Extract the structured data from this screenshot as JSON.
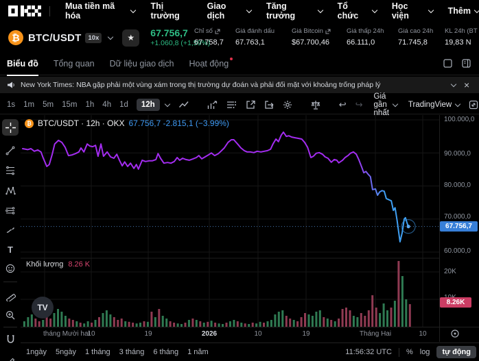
{
  "nav": {
    "items": [
      {
        "label": "Mua tiền mã hóa",
        "caret": true
      },
      {
        "label": "Thị trường",
        "caret": false
      },
      {
        "label": "Giao dịch",
        "caret": true
      },
      {
        "label": "Tăng trưởng",
        "caret": true
      },
      {
        "label": "Tổ chức",
        "caret": true
      },
      {
        "label": "Học viện",
        "caret": true
      },
      {
        "label": "Thêm",
        "caret": true
      }
    ]
  },
  "ticker": {
    "pair": "BTC/USDT",
    "leverage": "10x",
    "coin_symbol": "₿",
    "price": "67.756,7",
    "change": "+1.060,8 (+1,59%)",
    "stats": [
      {
        "label": "Chỉ số",
        "value": "67.758,7"
      },
      {
        "label": "Giá đánh dấu",
        "value": "67.763,1"
      },
      {
        "label": "Giá Bitcoin",
        "value": "$67.700,46"
      },
      {
        "label": "Giá thấp 24h",
        "value": "66.111,0"
      },
      {
        "label": "Giá cao 24h",
        "value": "71.745,8"
      },
      {
        "label": "KL 24h (BT",
        "value": "19,83 N"
      }
    ]
  },
  "tabs": {
    "chart": "Biểu đồ",
    "overview": "Tổng quan",
    "trading_data": "Dữ liệu giao dịch",
    "activity": "Hoạt động"
  },
  "news": {
    "text": "New York Times: NBA gặp phải một vùng xám trong thị trường dự đoán và phải đối mặt với khoảng trống pháp lý"
  },
  "toolbar": {
    "timeframes": [
      "1s",
      "1m",
      "5m",
      "15m",
      "1h",
      "4h",
      "1d"
    ],
    "active_timeframe": "12h",
    "price_mode": "Giá gần nhất",
    "provider": "TradingView"
  },
  "legend": {
    "title": "BTC/USDT · 12h · OKX",
    "price_change": "67.756,7 -2.815,1 (−3.99%)"
  },
  "volume_legend": {
    "label": "Khối lượng",
    "value": "8.26 K"
  },
  "price_axis": {
    "labels": [
      "100.000,0",
      "90.000,0",
      "80.000,0",
      "70.000,0",
      "60.000,0"
    ],
    "current_badge": "67.756,7"
  },
  "volume_axis": {
    "labels": [
      "20K",
      "10K"
    ],
    "current_badge": "8.26K"
  },
  "time_axis": {
    "labels": [
      "tháng Mười hai",
      "10",
      "19",
      "2026",
      "10",
      "19",
      "Tháng Hai",
      "10"
    ]
  },
  "bottom": {
    "ranges": [
      "1ngày",
      "5ngày",
      "1 tháng",
      "3 tháng",
      "6 tháng",
      "1 năm"
    ],
    "clock": "11:56:32 UTC",
    "percent": "%",
    "log": "log",
    "auto": "tự động"
  },
  "icons": {
    "star": "★",
    "close": "×",
    "undo": "↩",
    "redo": "↪",
    "text_tool": "T",
    "tv": "TV"
  },
  "colors": {
    "green": "#2ebd85",
    "line_purple": "#a32cf0",
    "line_blue": "#3f9ff2",
    "legend_blue": "#3f9bf5",
    "badge_blue": "#377fd8",
    "badge_pink": "#cc3d64",
    "vol_green": "#2f7a52",
    "vol_red": "#8f3a52",
    "bitcoin_orange": "#f7931a",
    "alert_red": "#e0314b"
  },
  "chart_data": {
    "type": "line",
    "symbol": "BTC/USDT",
    "interval": "12h",
    "exchange": "OKX",
    "current_price": 67756.7,
    "price_pane_range": [
      58500,
      101500
    ],
    "grid_prices": [
      100000,
      90000,
      80000,
      70000,
      60000
    ],
    "volume_grid": [
      20000,
      10000
    ],
    "volume_pane_max": 25000,
    "current_volume": 8260,
    "points": [
      [
        0.0,
        91300
      ],
      [
        0.012,
        91000
      ],
      [
        0.02,
        91300
      ],
      [
        0.028,
        90500
      ],
      [
        0.036,
        90900
      ],
      [
        0.044,
        90300
      ],
      [
        0.049,
        88600
      ],
      [
        0.058,
        85900
      ],
      [
        0.064,
        86500
      ],
      [
        0.071,
        89600
      ],
      [
        0.077,
        92700
      ],
      [
        0.086,
        93800
      ],
      [
        0.094,
        93200
      ],
      [
        0.102,
        91700
      ],
      [
        0.11,
        89200
      ],
      [
        0.119,
        89400
      ],
      [
        0.127,
        89800
      ],
      [
        0.135,
        90300
      ],
      [
        0.14,
        91500
      ],
      [
        0.147,
        90300
      ],
      [
        0.155,
        92700
      ],
      [
        0.161,
        92100
      ],
      [
        0.168,
        91900
      ],
      [
        0.175,
        92300
      ],
      [
        0.181,
        89000
      ],
      [
        0.188,
        92700
      ],
      [
        0.194,
        89000
      ],
      [
        0.203,
        90300
      ],
      [
        0.211,
        88800
      ],
      [
        0.219,
        88400
      ],
      [
        0.226,
        89600
      ],
      [
        0.232,
        87900
      ],
      [
        0.239,
        86100
      ],
      [
        0.245,
        87300
      ],
      [
        0.252,
        85900
      ],
      [
        0.259,
        86900
      ],
      [
        0.267,
        85300
      ],
      [
        0.273,
        86500
      ],
      [
        0.278,
        85100
      ],
      [
        0.287,
        87800
      ],
      [
        0.295,
        87400
      ],
      [
        0.303,
        87600
      ],
      [
        0.311,
        87600
      ],
      [
        0.32,
        88000
      ],
      [
        0.325,
        89800
      ],
      [
        0.331,
        88400
      ],
      [
        0.339,
        86900
      ],
      [
        0.348,
        87100
      ],
      [
        0.356,
        86900
      ],
      [
        0.364,
        87400
      ],
      [
        0.371,
        88600
      ],
      [
        0.377,
        87800
      ],
      [
        0.384,
        88400
      ],
      [
        0.392,
        88000
      ],
      [
        0.4,
        87800
      ],
      [
        0.409,
        88200
      ],
      [
        0.417,
        88600
      ],
      [
        0.423,
        89200
      ],
      [
        0.43,
        88200
      ],
      [
        0.438,
        88800
      ],
      [
        0.446,
        89400
      ],
      [
        0.453,
        90000
      ],
      [
        0.461,
        89200
      ],
      [
        0.47,
        89800
      ],
      [
        0.476,
        90500
      ],
      [
        0.484,
        91500
      ],
      [
        0.493,
        93200
      ],
      [
        0.501,
        94000
      ],
      [
        0.507,
        94000
      ],
      [
        0.516,
        92700
      ],
      [
        0.524,
        91500
      ],
      [
        0.532,
        90700
      ],
      [
        0.539,
        90300
      ],
      [
        0.547,
        90300
      ],
      [
        0.555,
        90100
      ],
      [
        0.563,
        90500
      ],
      [
        0.572,
        90300
      ],
      [
        0.58,
        90500
      ],
      [
        0.588,
        90700
      ],
      [
        0.595,
        91100
      ],
      [
        0.601,
        92700
      ],
      [
        0.608,
        94200
      ],
      [
        0.614,
        93400
      ],
      [
        0.621,
        95400
      ],
      [
        0.626,
        96300
      ],
      [
        0.633,
        95000
      ],
      [
        0.639,
        95200
      ],
      [
        0.646,
        94800
      ],
      [
        0.654,
        94600
      ],
      [
        0.662,
        94400
      ],
      [
        0.67,
        94200
      ],
      [
        0.677,
        93200
      ],
      [
        0.684,
        91700
      ],
      [
        0.692,
        88600
      ],
      [
        0.698,
        89000
      ],
      [
        0.705,
        89900
      ],
      [
        0.712,
        90100
      ],
      [
        0.72,
        89600
      ],
      [
        0.726,
        88800
      ],
      [
        0.733,
        88400
      ],
      [
        0.741,
        87200
      ],
      [
        0.748,
        88000
      ],
      [
        0.754,
        87800
      ],
      [
        0.759,
        87000
      ],
      [
        0.768,
        87800
      ],
      [
        0.774,
        88600
      ],
      [
        0.781,
        89200
      ],
      [
        0.787,
        89900
      ],
      [
        0.794,
        90300
      ],
      [
        0.801,
        89600
      ],
      [
        0.807,
        88000
      ],
      [
        0.814,
        85700
      ],
      [
        0.819,
        84000
      ],
      [
        0.824,
        84400
      ],
      [
        0.829,
        83600
      ],
      [
        0.835,
        82800
      ],
      [
        0.84,
        78900
      ],
      [
        0.847,
        79100
      ],
      [
        0.852,
        77200
      ],
      [
        0.857,
        78200
      ],
      [
        0.863,
        78600
      ],
      [
        0.868,
        78400
      ],
      [
        0.873,
        76200
      ],
      [
        0.88,
        75800
      ],
      [
        0.885,
        75500
      ],
      [
        0.89,
        72600
      ],
      [
        0.894,
        73400
      ],
      [
        0.899,
        69500
      ],
      [
        0.906,
        63100
      ],
      [
        0.911,
        65800
      ],
      [
        0.916,
        70000
      ],
      [
        0.919,
        70400
      ],
      [
        0.923,
        68700
      ],
      [
        0.926,
        67756.7
      ]
    ],
    "volumes": [
      [
        2.0,
        "g"
      ],
      [
        3.5,
        "g"
      ],
      [
        4.5,
        "g"
      ],
      [
        3.0,
        "r"
      ],
      [
        2.0,
        "r"
      ],
      [
        2.5,
        "g"
      ],
      [
        4.0,
        "r"
      ],
      [
        3.0,
        "r"
      ],
      [
        5.0,
        "g"
      ],
      [
        6.5,
        "g"
      ],
      [
        5.5,
        "g"
      ],
      [
        4.0,
        "g"
      ],
      [
        3.0,
        "r"
      ],
      [
        2.5,
        "r"
      ],
      [
        2.0,
        "g"
      ],
      [
        1.5,
        "r"
      ],
      [
        1.2,
        "g"
      ],
      [
        2.0,
        "g"
      ],
      [
        1.5,
        "r"
      ],
      [
        2.5,
        "g"
      ],
      [
        3.5,
        "r"
      ],
      [
        5.0,
        "g"
      ],
      [
        6.0,
        "g"
      ],
      [
        4.5,
        "g"
      ],
      [
        3.5,
        "r"
      ],
      [
        2.5,
        "r"
      ],
      [
        3.0,
        "r"
      ],
      [
        2.0,
        "g"
      ],
      [
        1.8,
        "r"
      ],
      [
        1.5,
        "r"
      ],
      [
        1.2,
        "g"
      ],
      [
        1.5,
        "g"
      ],
      [
        2.0,
        "r"
      ],
      [
        1.8,
        "g"
      ],
      [
        5.5,
        "r"
      ],
      [
        3.5,
        "g"
      ],
      [
        6.5,
        "r"
      ],
      [
        4.0,
        "g"
      ],
      [
        3.0,
        "g"
      ],
      [
        2.0,
        "r"
      ],
      [
        1.5,
        "r"
      ],
      [
        1.2,
        "g"
      ],
      [
        1.0,
        "g"
      ],
      [
        1.5,
        "r"
      ],
      [
        2.5,
        "g"
      ],
      [
        3.0,
        "r"
      ],
      [
        2.5,
        "g"
      ],
      [
        2.0,
        "r"
      ],
      [
        1.5,
        "g"
      ],
      [
        1.8,
        "r"
      ],
      [
        2.2,
        "g"
      ],
      [
        1.5,
        "r"
      ],
      [
        1.2,
        "g"
      ],
      [
        1.0,
        "g"
      ],
      [
        1.5,
        "r"
      ],
      [
        2.0,
        "g"
      ],
      [
        2.5,
        "g"
      ],
      [
        2.0,
        "r"
      ],
      [
        1.5,
        "g"
      ],
      [
        1.2,
        "r"
      ],
      [
        1.0,
        "g"
      ],
      [
        1.5,
        "r"
      ],
      [
        1.2,
        "g"
      ],
      [
        1.8,
        "g"
      ],
      [
        1.5,
        "r"
      ],
      [
        2.0,
        "g"
      ],
      [
        2.5,
        "g"
      ],
      [
        4.5,
        "g"
      ],
      [
        5.5,
        "g"
      ],
      [
        6.0,
        "g"
      ],
      [
        4.0,
        "r"
      ],
      [
        3.0,
        "r"
      ],
      [
        2.5,
        "g"
      ],
      [
        2.0,
        "r"
      ],
      [
        3.5,
        "r"
      ],
      [
        5.0,
        "r"
      ],
      [
        4.5,
        "g"
      ],
      [
        4.0,
        "g"
      ],
      [
        5.5,
        "g"
      ],
      [
        6.0,
        "g"
      ],
      [
        3.5,
        "r"
      ],
      [
        3.0,
        "g"
      ],
      [
        2.5,
        "r"
      ],
      [
        2.0,
        "g"
      ],
      [
        3.0,
        "r"
      ],
      [
        6.5,
        "r"
      ],
      [
        7.0,
        "r"
      ],
      [
        6.0,
        "r"
      ],
      [
        4.0,
        "g"
      ],
      [
        3.5,
        "g"
      ],
      [
        5.0,
        "r"
      ],
      [
        4.0,
        "r"
      ],
      [
        6.0,
        "r"
      ],
      [
        11.5,
        "r"
      ],
      [
        7.0,
        "r"
      ],
      [
        5.0,
        "g"
      ],
      [
        8.5,
        "g"
      ],
      [
        6.0,
        "g"
      ],
      [
        7.0,
        "r"
      ],
      [
        9.5,
        "g"
      ],
      [
        24.0,
        "r"
      ],
      [
        18.5,
        "g"
      ],
      [
        10.0,
        "g"
      ],
      [
        8.26,
        "r"
      ]
    ]
  }
}
